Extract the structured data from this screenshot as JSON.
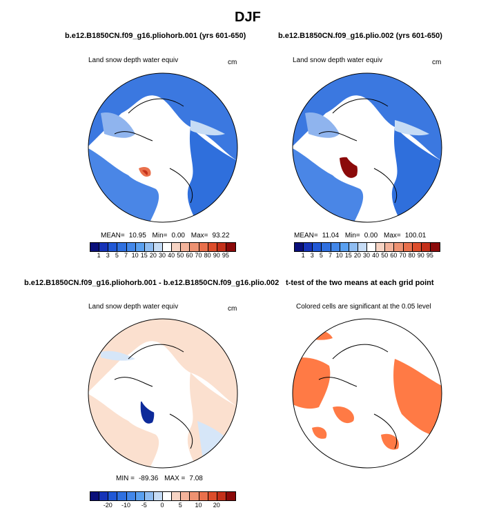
{
  "figure_title": "DJF",
  "palette_snow": [
    "#0a0f7a",
    "#1633b8",
    "#2158d6",
    "#2f70e0",
    "#4287ea",
    "#5aa0f0",
    "#8fbdf2",
    "#c6dcf5",
    "#ffffff",
    "#f7d4c4",
    "#f3b39b",
    "#ee9272",
    "#e9704c",
    "#dd4d2b",
    "#c4301a",
    "#8b0a0a"
  ],
  "palette_diff": [
    "#0a0f7a",
    "#1633b8",
    "#2158d6",
    "#2f70e0",
    "#4287ea",
    "#5aa0f0",
    "#8fbdf2",
    "#c6dcf5",
    "#ffffff",
    "#f7d4c4",
    "#f3b39b",
    "#ee9272",
    "#e9704c",
    "#dd4d2b",
    "#c4301a",
    "#8b0a0a"
  ],
  "colors": {
    "land_fill": "#3b78e0",
    "land_light": "#8fb4ee",
    "highlight": "#ffffff",
    "anomaly_pos": "#fbe0cf",
    "anomaly_neg": "#d6e6f8",
    "sig": "#ff7a45",
    "deep_red": "#b01010",
    "dark_blue": "#0d2a9a"
  },
  "panels": [
    {
      "id": "p1",
      "title": "b.e12.B1850CN.f09_g16.pliohorb.001 (yrs 601-650)",
      "subtitle": "Land snow depth water equiv",
      "units": "cm",
      "stats": {
        "mean_label": "MEAN=",
        "mean": "10.95",
        "min_label": "Min=",
        "min": "0.00",
        "max_label": "Max=",
        "max": "93.22"
      },
      "ticks": [
        "1",
        "3",
        "5",
        "7",
        "10",
        "15",
        "20",
        "30",
        "40",
        "50",
        "60",
        "70",
        "80",
        "90",
        "95"
      ]
    },
    {
      "id": "p2",
      "title": "b.e12.B1850CN.f09_g16.plio.002 (yrs 601-650)",
      "subtitle": "Land snow depth water equiv",
      "units": "cm",
      "stats": {
        "mean_label": "MEAN=",
        "mean": "11.04",
        "min_label": "Min=",
        "min": "0.00",
        "max_label": "Max=",
        "max": "100.01"
      },
      "ticks": [
        "1",
        "3",
        "5",
        "7",
        "10",
        "15",
        "20",
        "30",
        "40",
        "50",
        "60",
        "70",
        "80",
        "90",
        "95"
      ]
    },
    {
      "id": "p3",
      "title": "b.e12.B1850CN.f09_g16.pliohorb.001 - b.e12.B1850CN.f09_g16.plio.002",
      "subtitle": "Land snow depth water equiv",
      "units": "cm",
      "stats": {
        "min_label": "MIN =",
        "min": "-89.36",
        "max_label": "MAX =",
        "max": "7.08"
      },
      "ticks": [
        "-20",
        "-10",
        "-5",
        "0",
        "5",
        "10",
        "20"
      ]
    },
    {
      "id": "p4",
      "title": "t-test of the two means at each grid point",
      "subtitle": "Colored cells are significant at the 0.05 level"
    }
  ]
}
